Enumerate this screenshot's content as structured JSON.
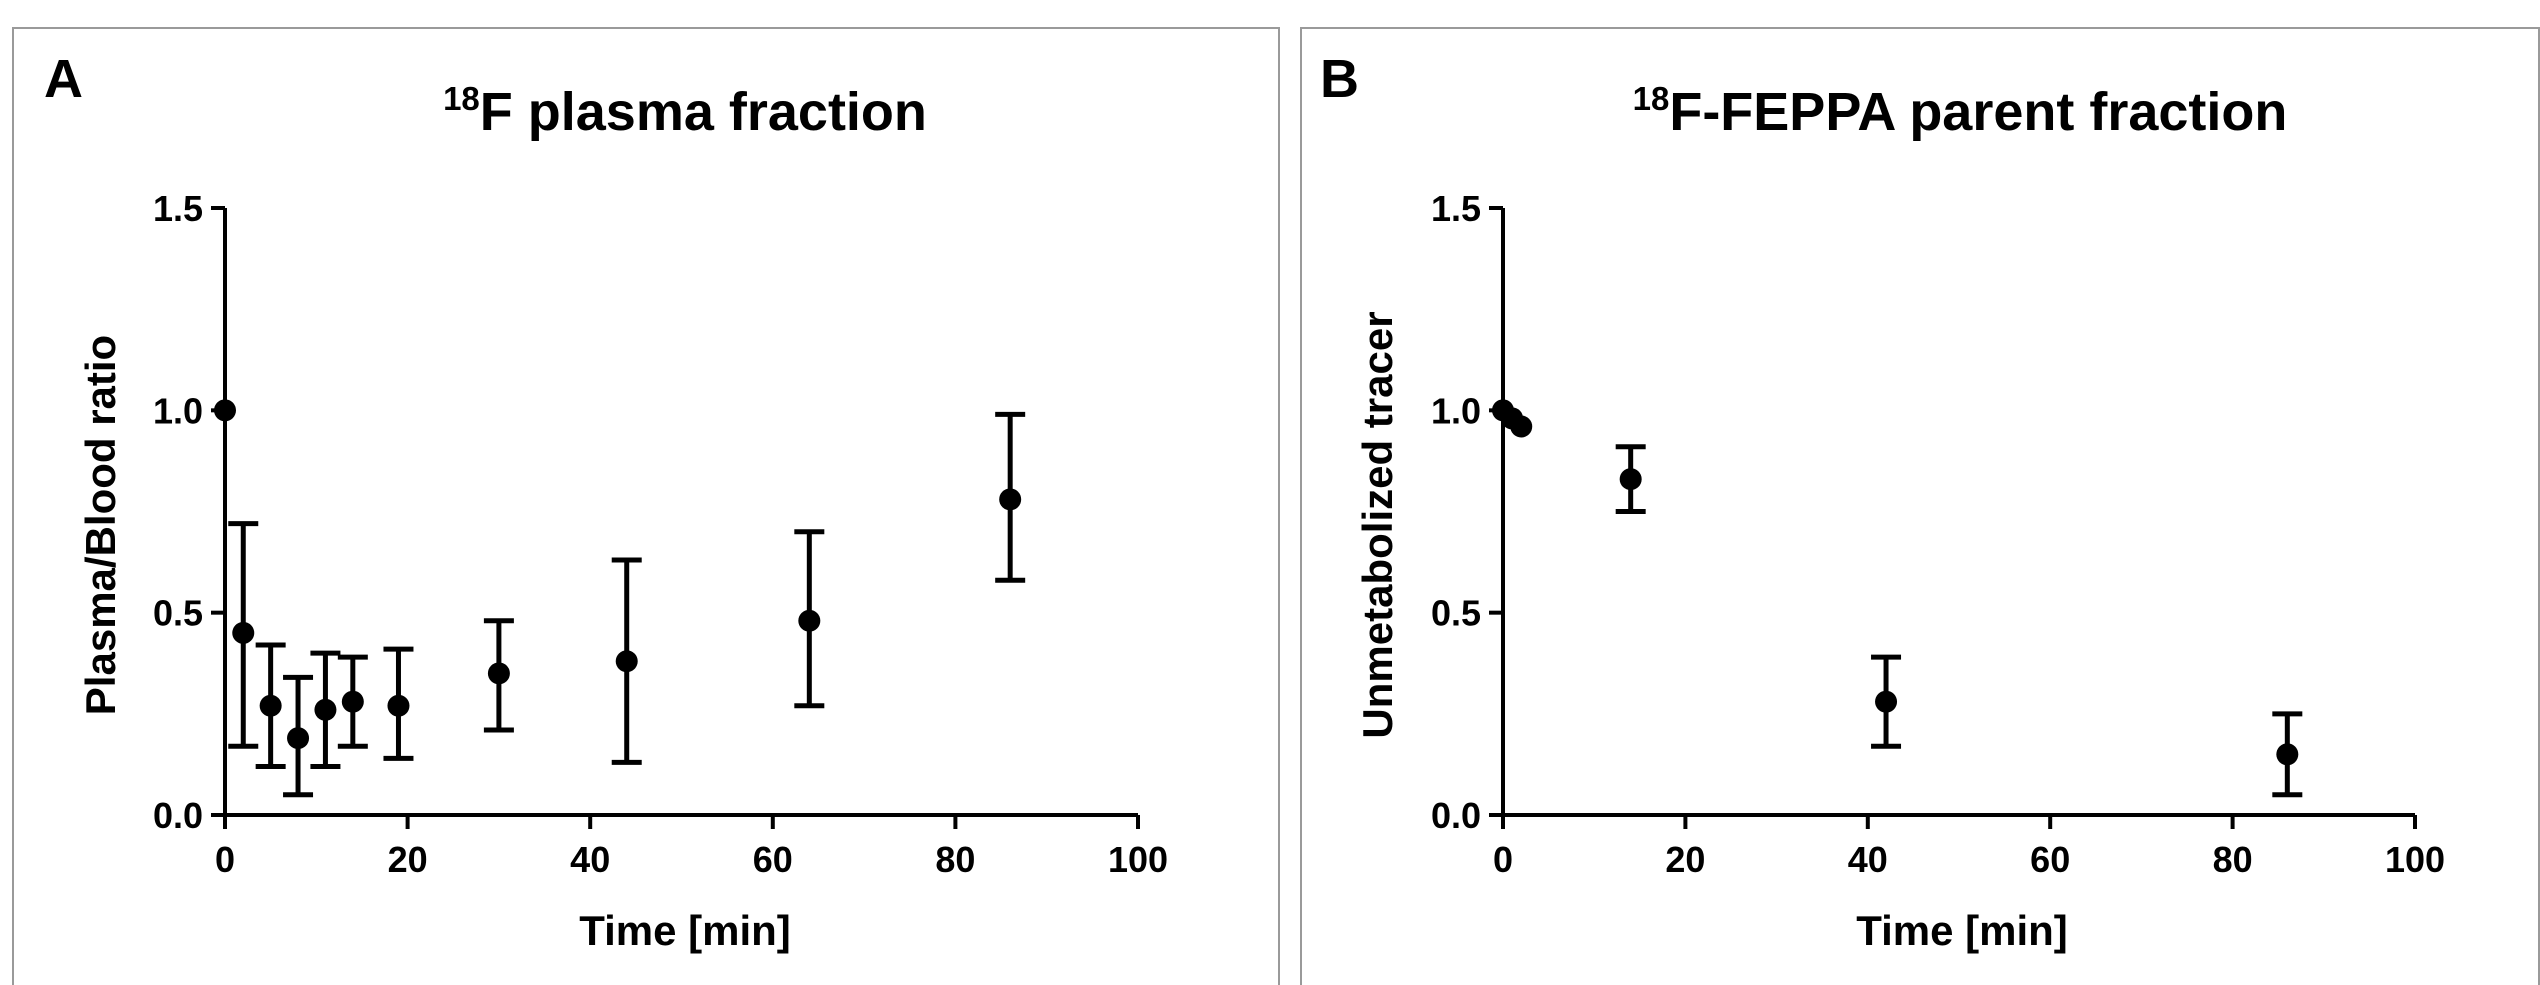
{
  "chart_data": [
    {
      "type": "scatter",
      "panel_label": "A",
      "title": "F plasma fraction",
      "title_superscript": "18",
      "xlabel": "Time [min]",
      "ylabel": "Plasma/Blood ratio",
      "xlim": [
        0,
        100
      ],
      "ylim": [
        0,
        1.5
      ],
      "xticks": [
        0,
        20,
        40,
        60,
        80,
        100
      ],
      "yticks": [
        0.0,
        0.5,
        1.0,
        1.5
      ],
      "xtick_labels": [
        "0",
        "20",
        "40",
        "60",
        "80",
        "100"
      ],
      "ytick_labels": [
        "0.0",
        "0.5",
        "1.0",
        "1.5"
      ],
      "grid": false,
      "series": [
        {
          "x": [
            0,
            2,
            5,
            8,
            11,
            14,
            19,
            30,
            44,
            64,
            86
          ],
          "y": [
            1.0,
            0.45,
            0.27,
            0.19,
            0.26,
            0.28,
            0.27,
            0.35,
            0.38,
            0.48,
            0.78
          ],
          "yerr_low": [
            1.0,
            0.17,
            0.12,
            0.05,
            0.12,
            0.17,
            0.14,
            0.21,
            0.13,
            0.27,
            0.58
          ],
          "yerr_high": [
            1.0,
            0.72,
            0.42,
            0.34,
            0.4,
            0.39,
            0.41,
            0.48,
            0.63,
            0.7,
            0.99
          ]
        }
      ]
    },
    {
      "type": "scatter",
      "panel_label": "B",
      "title": "F-FEPPA parent fraction",
      "title_superscript": "18",
      "xlabel": "Time [min]",
      "ylabel": "Unmetabolized tracer",
      "xlim": [
        0,
        100
      ],
      "ylim": [
        0,
        1.5
      ],
      "xticks": [
        0,
        20,
        40,
        60,
        80,
        100
      ],
      "yticks": [
        0.0,
        0.5,
        1.0,
        1.5
      ],
      "xtick_labels": [
        "0",
        "20",
        "40",
        "60",
        "80",
        "100"
      ],
      "ytick_labels": [
        "0.0",
        "0.5",
        "1.0",
        "1.5"
      ],
      "grid": false,
      "series": [
        {
          "x": [
            0,
            1,
            2,
            14,
            42,
            86
          ],
          "y": [
            1.0,
            0.98,
            0.96,
            0.83,
            0.28,
            0.15
          ],
          "yerr_low": [
            1.0,
            0.98,
            0.96,
            0.75,
            0.17,
            0.05
          ],
          "yerr_high": [
            1.0,
            0.98,
            0.96,
            0.91,
            0.39,
            0.25
          ]
        }
      ]
    }
  ]
}
